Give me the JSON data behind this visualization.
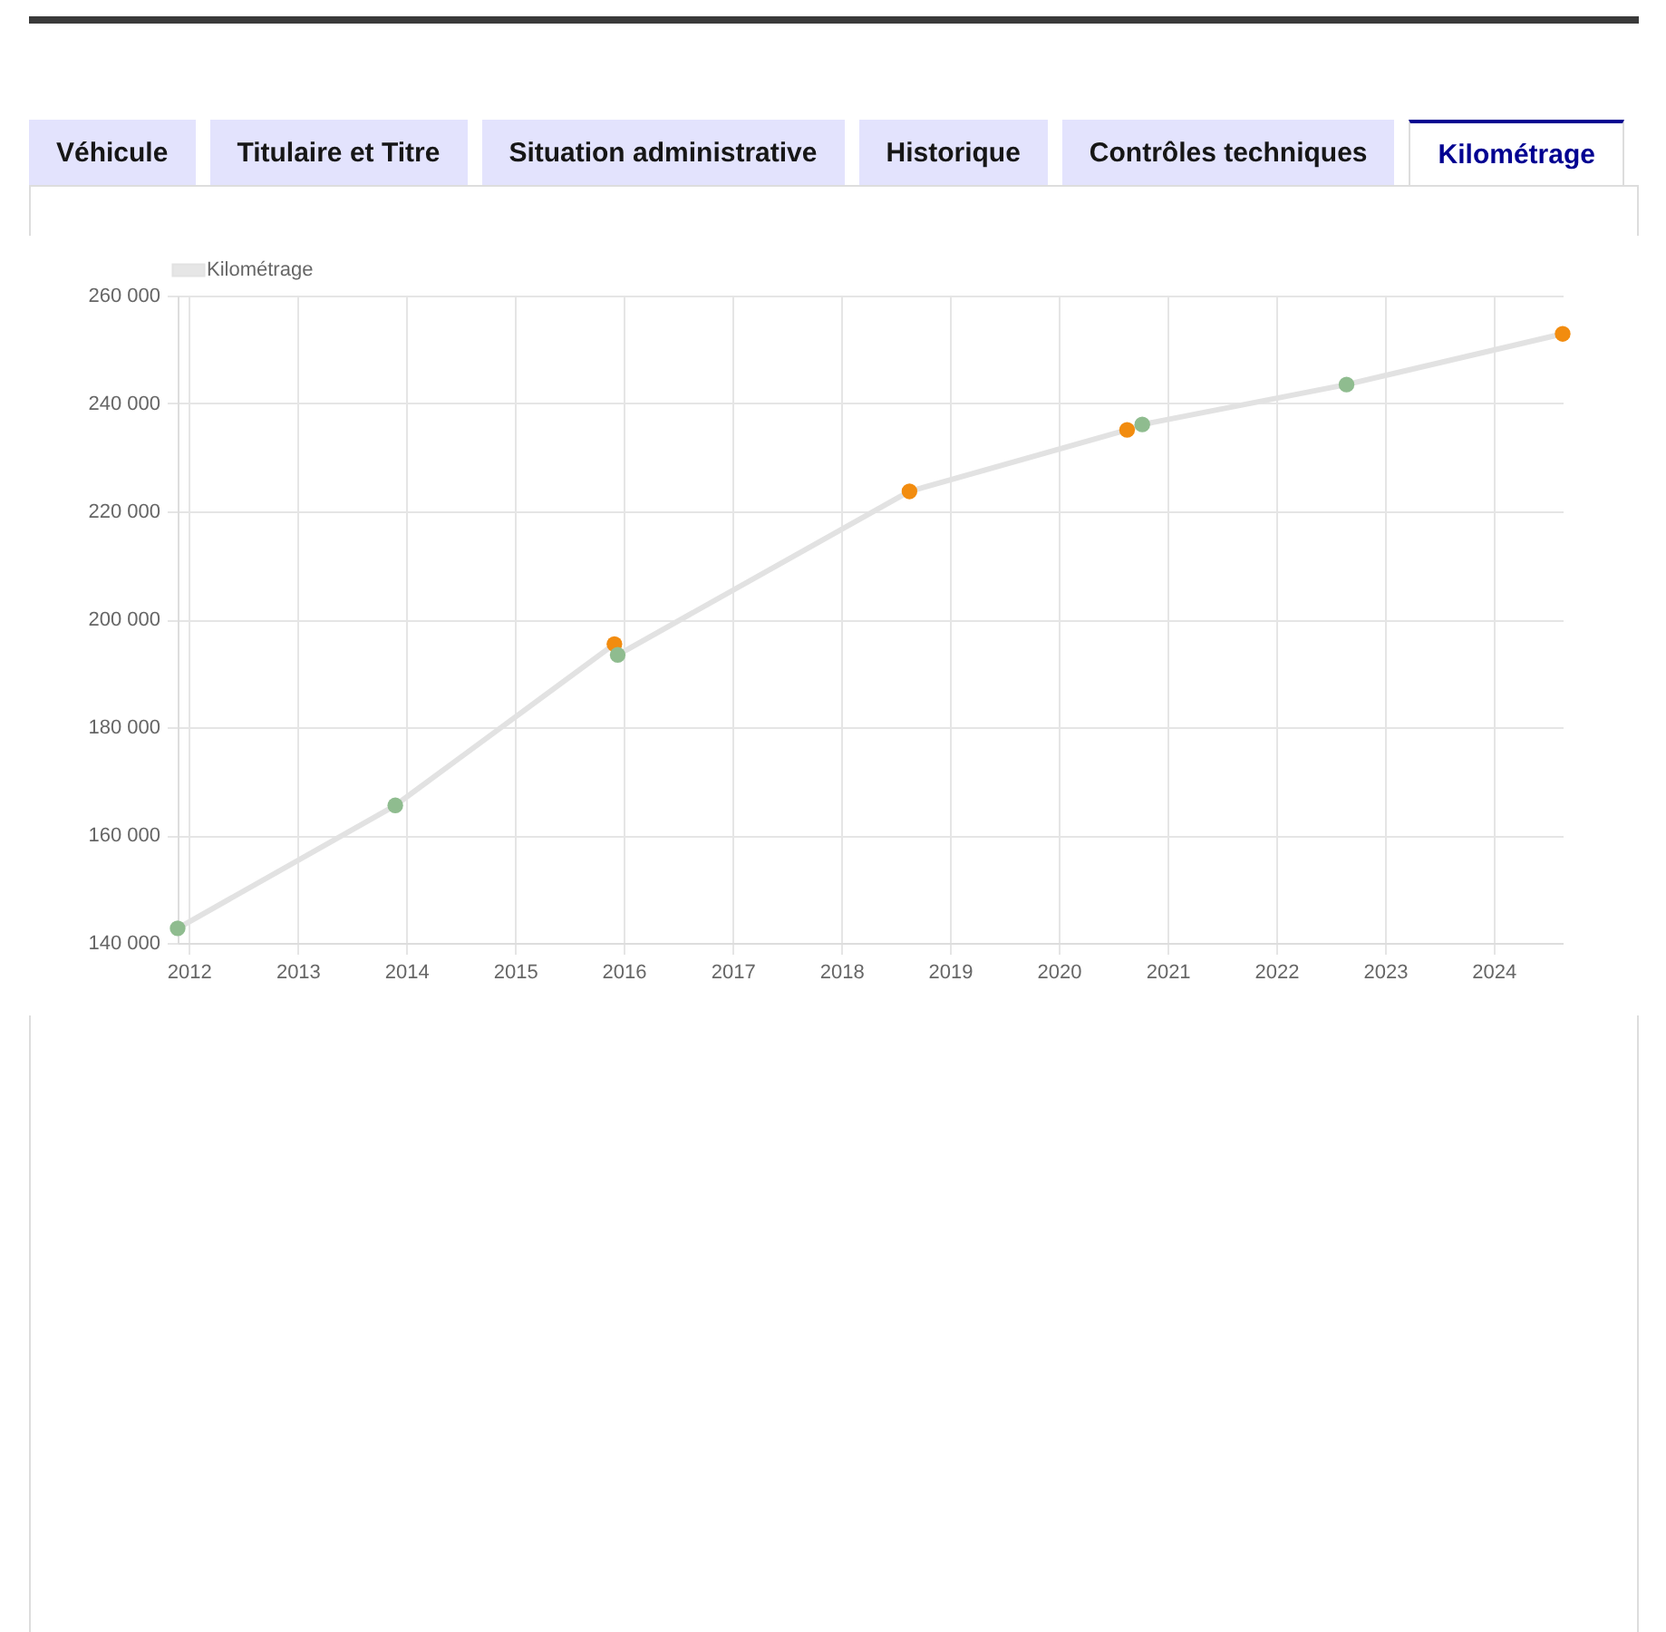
{
  "chart_data": {
    "type": "line",
    "legend": "top",
    "grid": true,
    "marker": "circle",
    "line_style": "solid",
    "annotations": [
      "Véhicule",
      "Titulaire et Titre",
      "Situation administrative",
      "Historique",
      "Contrôles techniques",
      "Kilométrage"
    ],
    "x": [
      "2011-11-25",
      "2013-11-25",
      "2015-12-01",
      "2015-12-12",
      "2018-08-18",
      "2020-08-18",
      "2020-10-08",
      "2022-08-25",
      "2024-08-20"
    ],
    "series": [
      {
        "name": "Kilométrage",
        "color": "#e2e2e2",
        "values": [
          142700,
          165500,
          195400,
          193400,
          223700,
          235100,
          236100,
          243500,
          252900
        ],
        "colors": [
          "#8fbc8f",
          "#8fbc8f",
          "#f28c0f",
          "#8fbc8f",
          "#f28c0f",
          "#f28c0f",
          "#8fbc8f",
          "#8fbc8f",
          "#f28c0f"
        ]
      }
    ],
    "xlim": [
      "2011-11-25",
      "2024-08-20"
    ],
    "xticks": [
      "2012",
      "2013",
      "2014",
      "2015",
      "2016",
      "2017",
      "2018",
      "2019",
      "2020",
      "2021",
      "2022",
      "2023",
      "2024"
    ],
    "ylim": [
      140000,
      260000
    ],
    "yticks": [
      {
        "value": 140000,
        "label": "140 000"
      },
      {
        "value": 160000,
        "label": "160 000"
      },
      {
        "value": 180000,
        "label": "180 000"
      },
      {
        "value": 200000,
        "label": "200 000"
      },
      {
        "value": 220000,
        "label": "220 000"
      },
      {
        "value": 240000,
        "label": "240 000"
      },
      {
        "value": 260000,
        "label": "260 000"
      }
    ]
  }
}
